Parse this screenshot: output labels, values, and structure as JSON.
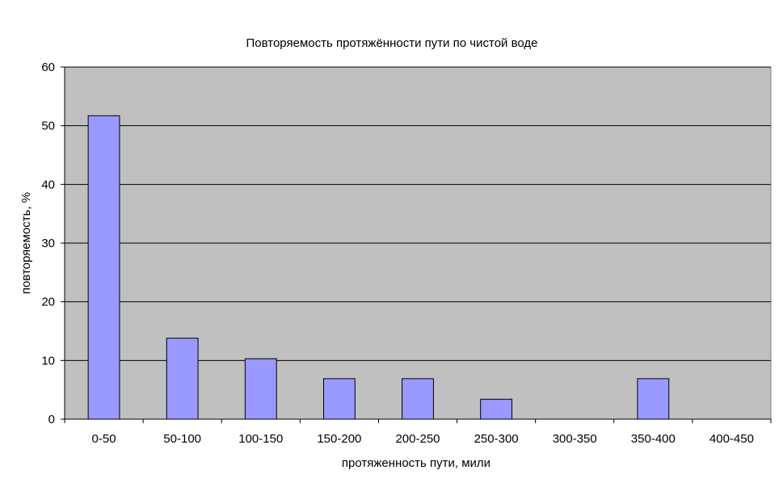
{
  "chart_data": {
    "type": "bar",
    "title": "Повторяемость протяжённости пути по чистой воде",
    "xlabel": "протяженность пути, мили",
    "ylabel": "повторяемость, %",
    "categories": [
      "0-50",
      "50-100",
      "100-150",
      "150-200",
      "200-250",
      "250-300",
      "300-350",
      "350-400",
      "400-450"
    ],
    "values": [
      51.7,
      13.8,
      10.3,
      6.9,
      6.9,
      3.4,
      0,
      6.9,
      0
    ],
    "ylim": [
      0,
      60
    ],
    "yticks": [
      0,
      10,
      20,
      30,
      40,
      50,
      60
    ],
    "grid": true,
    "legend": "none",
    "colors": {
      "bar_fill": "#9999ff",
      "bar_stroke": "#000000",
      "plot_background": "#c0c0c0",
      "gridline": "#000000"
    }
  }
}
